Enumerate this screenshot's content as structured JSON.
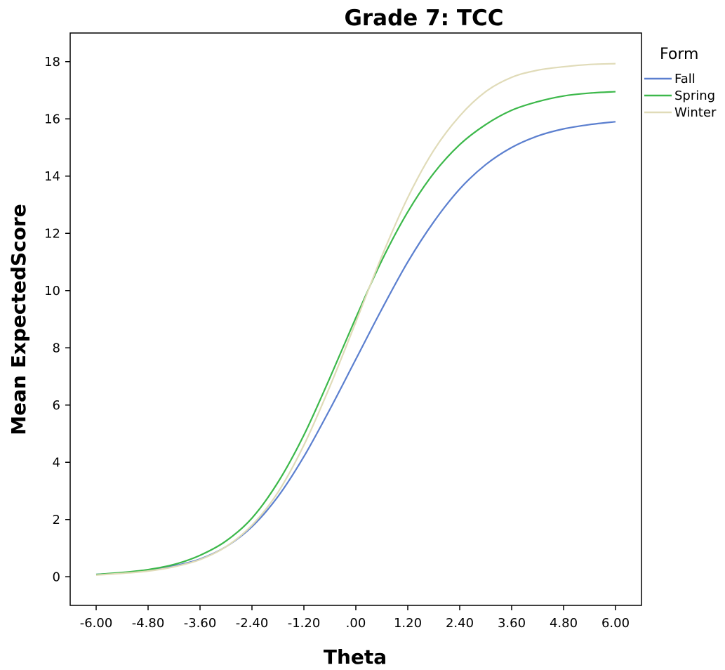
{
  "chart_data": {
    "type": "line",
    "title": "Grade 7: TCC",
    "xlabel": "Theta",
    "ylabel": "Mean ExpectedScore",
    "xlim": [
      -6.6,
      6.6
    ],
    "ylim": [
      -1,
      19
    ],
    "x_ticks": [
      "-6.00",
      "-4.80",
      "-3.60",
      "-2.40",
      "-1.20",
      ".00",
      "1.20",
      "2.40",
      "3.60",
      "4.80",
      "6.00"
    ],
    "x_tick_values": [
      -6.0,
      -4.8,
      -3.6,
      -2.4,
      -1.2,
      0.0,
      1.2,
      2.4,
      3.6,
      4.8,
      6.0
    ],
    "y_ticks": [
      "0",
      "2",
      "4",
      "6",
      "8",
      "10",
      "12",
      "14",
      "16",
      "18"
    ],
    "y_tick_values": [
      0,
      2,
      4,
      6,
      8,
      10,
      12,
      14,
      16,
      18
    ],
    "grid": false,
    "legend": {
      "title": "Form",
      "position": "top-right"
    },
    "x": [
      -6.0,
      -5.4,
      -4.8,
      -4.2,
      -3.6,
      -3.0,
      -2.4,
      -1.8,
      -1.2,
      -0.6,
      0.0,
      0.6,
      1.2,
      1.8,
      2.4,
      3.0,
      3.6,
      4.2,
      4.8,
      5.4,
      6.0
    ],
    "series": [
      {
        "name": "Fall",
        "color": "#5b7fcf",
        "values": [
          0.08,
          0.14,
          0.22,
          0.38,
          0.62,
          1.05,
          1.75,
          2.8,
          4.2,
          5.85,
          7.6,
          9.35,
          11.0,
          12.4,
          13.55,
          14.4,
          15.0,
          15.4,
          15.65,
          15.8,
          15.9
        ]
      },
      {
        "name": "Spring",
        "color": "#3cb84a",
        "values": [
          0.08,
          0.15,
          0.25,
          0.43,
          0.75,
          1.25,
          2.05,
          3.3,
          4.95,
          6.95,
          9.05,
          11.05,
          12.75,
          14.1,
          15.1,
          15.8,
          16.3,
          16.6,
          16.8,
          16.9,
          16.95
        ]
      },
      {
        "name": "Winter",
        "color": "#e0dbb8",
        "values": [
          0.06,
          0.12,
          0.2,
          0.35,
          0.6,
          1.05,
          1.8,
          2.95,
          4.6,
          6.65,
          8.9,
          11.2,
          13.25,
          14.9,
          16.1,
          16.95,
          17.45,
          17.7,
          17.82,
          17.9,
          17.93
        ]
      }
    ]
  }
}
